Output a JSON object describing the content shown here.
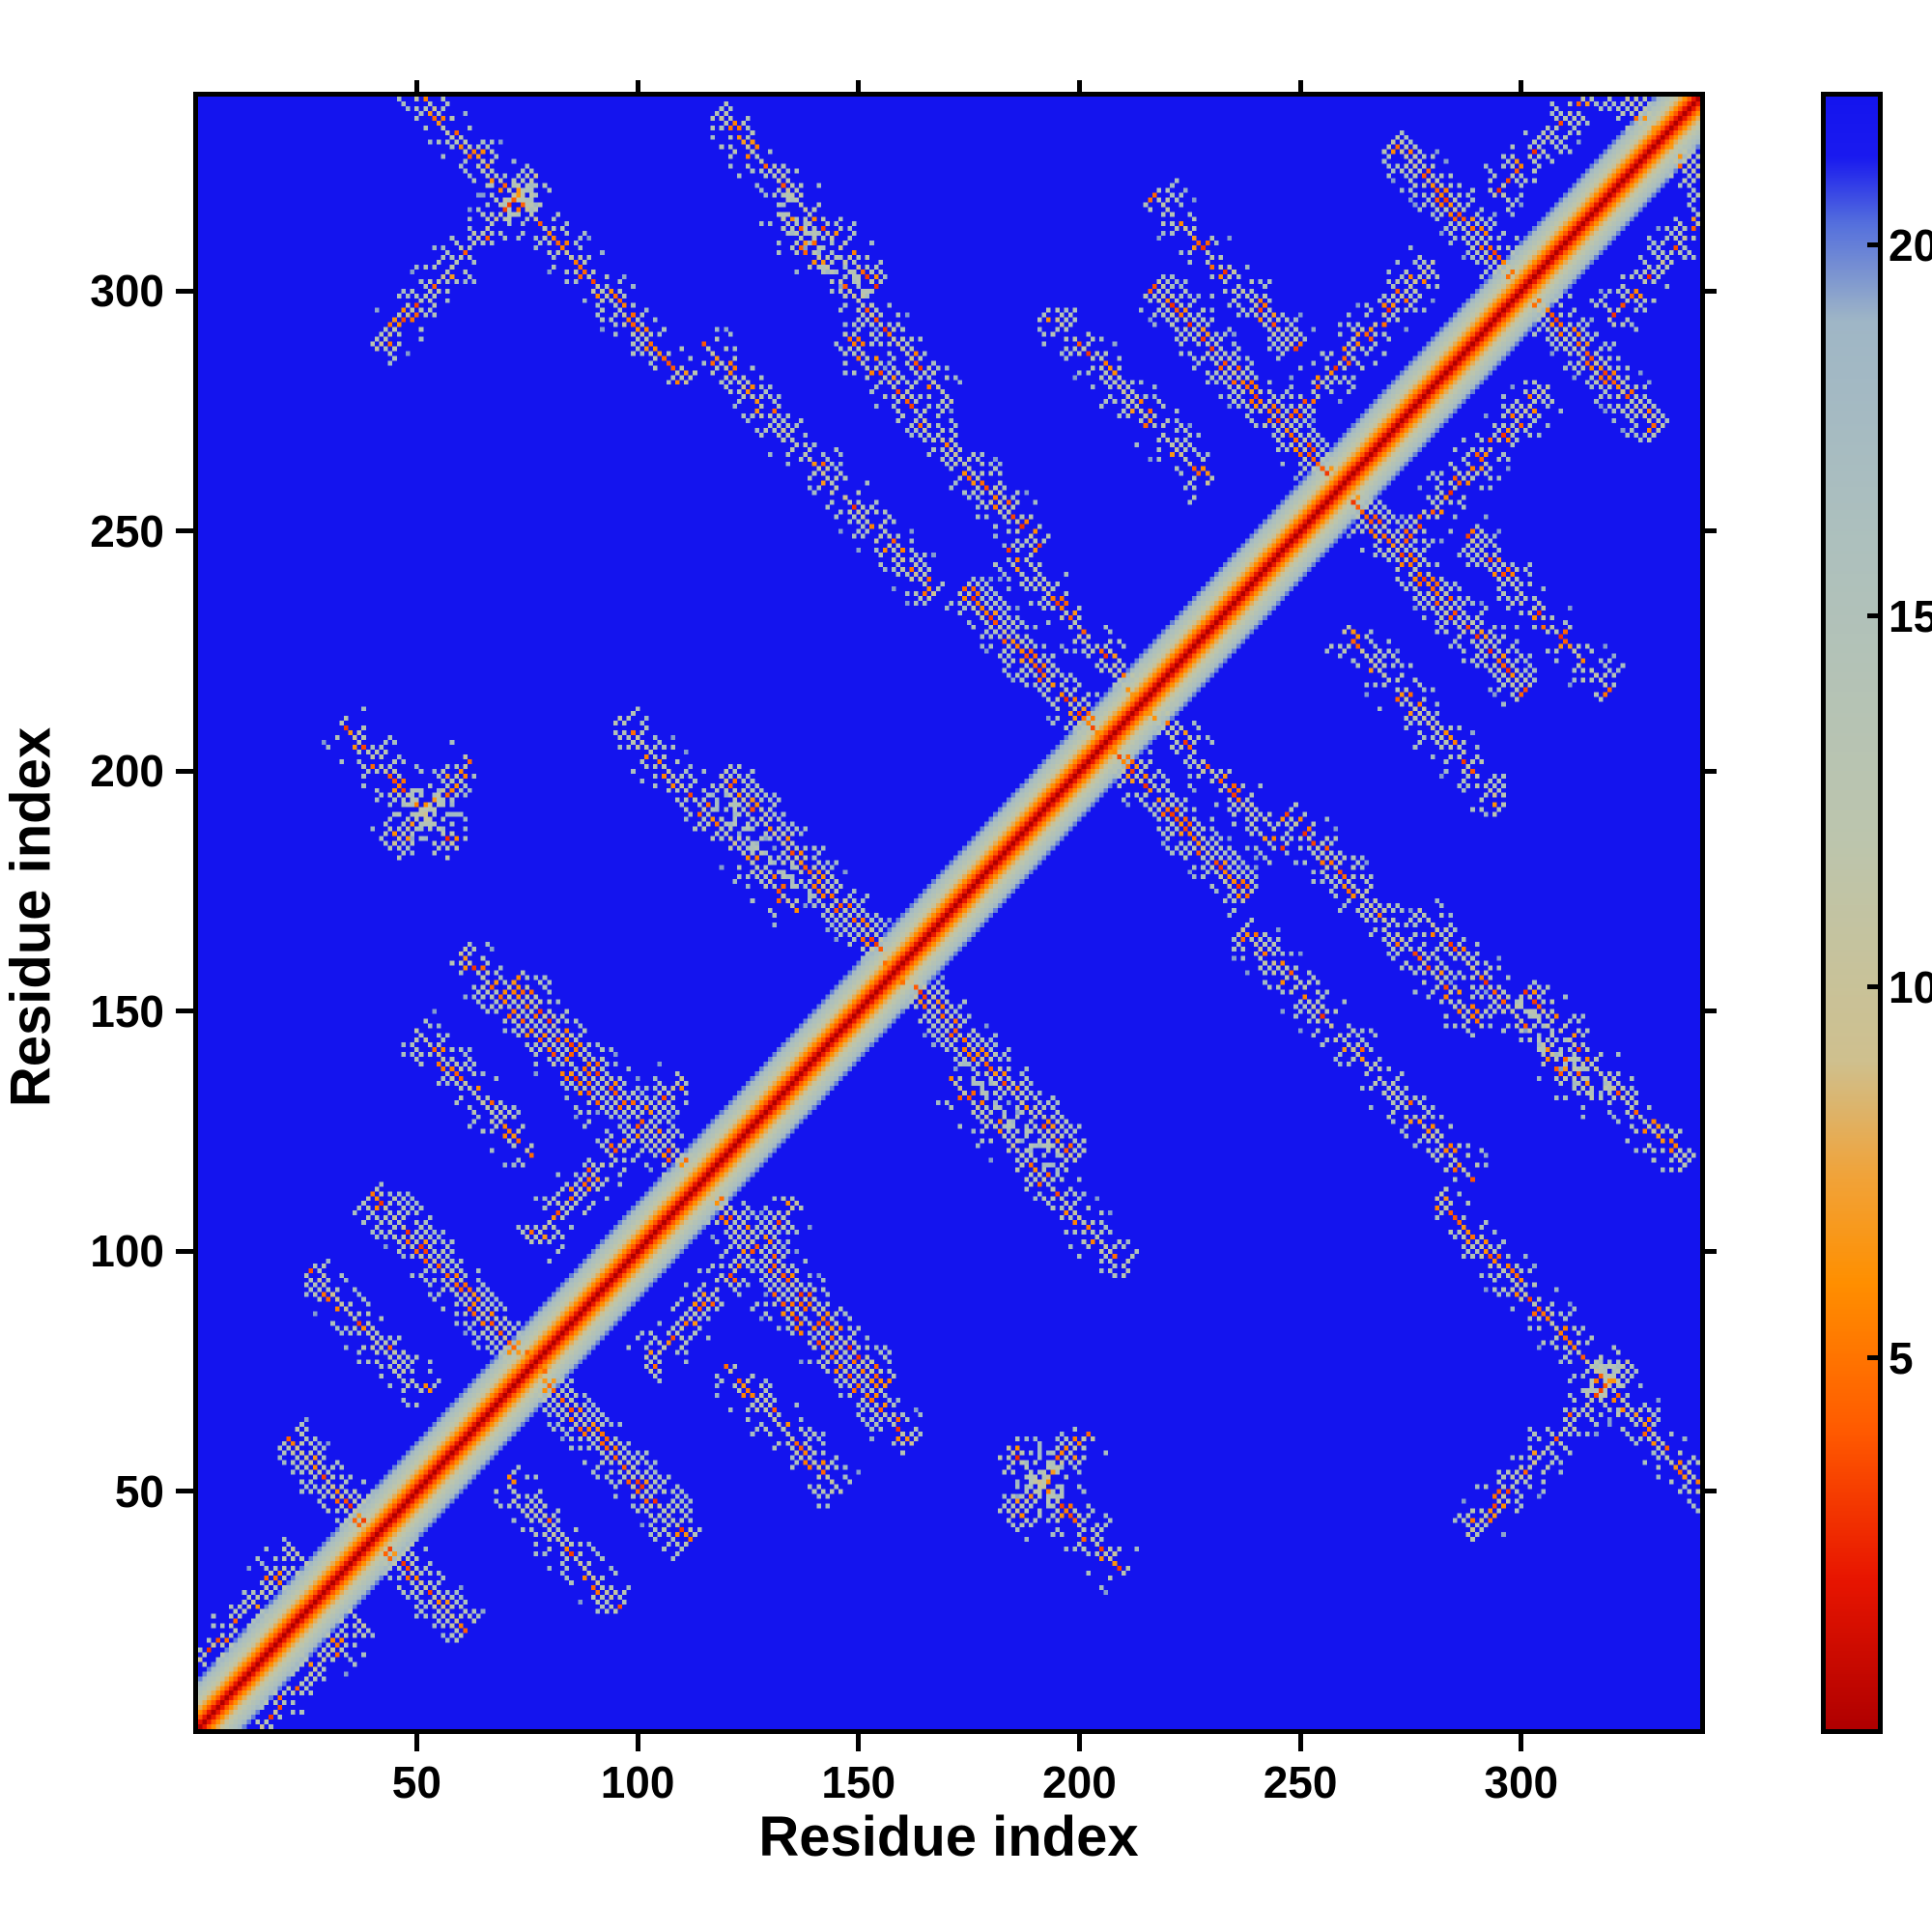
{
  "chart_data": {
    "type": "heatmap",
    "title": "",
    "xlabel": "Residue index",
    "ylabel": "Residue index",
    "x_range": [
      1,
      340
    ],
    "y_range": [
      1,
      340
    ],
    "x_ticks": [
      50,
      100,
      150,
      200,
      250,
      300
    ],
    "y_ticks": [
      50,
      100,
      150,
      200,
      250,
      300
    ],
    "grid": false,
    "legend": "none",
    "colorbar": {
      "position": "right",
      "ticks": [
        5,
        10,
        15,
        20
      ],
      "vmin": 0,
      "vmax": 22
    },
    "background_color": "#1414ee",
    "colormap": {
      "name": "jet-reversed-distance",
      "stops": [
        {
          "v": 0,
          "c": "#b00000"
        },
        {
          "v": 2,
          "c": "#e81500"
        },
        {
          "v": 4,
          "c": "#ff5a00"
        },
        {
          "v": 6,
          "c": "#ff8f00"
        },
        {
          "v": 7.5,
          "c": "#f0a43c"
        },
        {
          "v": 9,
          "c": "#cfc08e"
        },
        {
          "v": 12,
          "c": "#bcc5ad"
        },
        {
          "v": 16,
          "c": "#adc0bd"
        },
        {
          "v": 19,
          "c": "#9fb6c6"
        },
        {
          "v": 20.3,
          "c": "#5570dd"
        },
        {
          "v": 21.2,
          "c": "#1a1aef"
        },
        {
          "v": 22,
          "c": "#1414ee"
        }
      ]
    },
    "matrix": {
      "n": 340,
      "description": "Symmetric residue-residue distance map (approximate reconstruction): red main diagonal with gray near-diagonal band; speckled gray/orange antiparallel (anti-diagonal) and parallel contact streaks; uniform blue background at capped distance.",
      "diagonal": {
        "slope_per_residue": 2.0,
        "band_halfwidth": 11
      },
      "hairpins": [
        {
          "center": 40,
          "arm": 20
        },
        {
          "center": 75,
          "arm": 36
        },
        {
          "center": 113,
          "arm": 42
        },
        {
          "center": 158,
          "arm": 40
        },
        {
          "center": 205,
          "arm": 32
        },
        {
          "center": 258,
          "arm": 42
        },
        {
          "center": 300,
          "arm": 30
        },
        {
          "center": 331,
          "arm": 26
        }
      ],
      "contacts": [
        {
          "i": 312,
          "j": 78,
          "len": 64,
          "dir": -1
        },
        {
          "i": 305,
          "j": 58,
          "len": 36,
          "dir": 1
        },
        {
          "i": 296,
          "j": 150,
          "len": 40,
          "dir": -1
        },
        {
          "i": 268,
          "j": 168,
          "len": 44,
          "dir": -1
        },
        {
          "i": 262,
          "j": 140,
          "len": 52,
          "dir": -1
        },
        {
          "i": 196,
          "j": 45,
          "len": 26,
          "dir": -1
        },
        {
          "i": 192,
          "j": 52,
          "len": 18,
          "dir": 1
        },
        {
          "i": 190,
          "j": 115,
          "len": 40,
          "dir": -1
        },
        {
          "i": 145,
          "j": 75,
          "len": 32,
          "dir": -1
        },
        {
          "i": 318,
          "j": 135,
          "len": 36,
          "dir": -1
        },
        {
          "i": 230,
          "j": 198,
          "len": 30,
          "dir": -1
        },
        {
          "i": 288,
          "j": 262,
          "len": 34,
          "dir": 1
        },
        {
          "i": 118,
          "j": 92,
          "len": 34,
          "dir": 1
        },
        {
          "i": 82,
          "j": 38,
          "len": 26,
          "dir": -1
        },
        {
          "i": 332,
          "j": 306,
          "len": 26,
          "dir": 1
        },
        {
          "i": 277,
          "j": 210,
          "len": 36,
          "dir": -1
        },
        {
          "i": 132,
          "j": 62,
          "len": 26,
          "dir": -1
        },
        {
          "i": 303,
          "j": 232,
          "len": 32,
          "dir": -1
        },
        {
          "i": 22,
          "j": 8,
          "len": 28,
          "dir": 1
        }
      ]
    }
  }
}
